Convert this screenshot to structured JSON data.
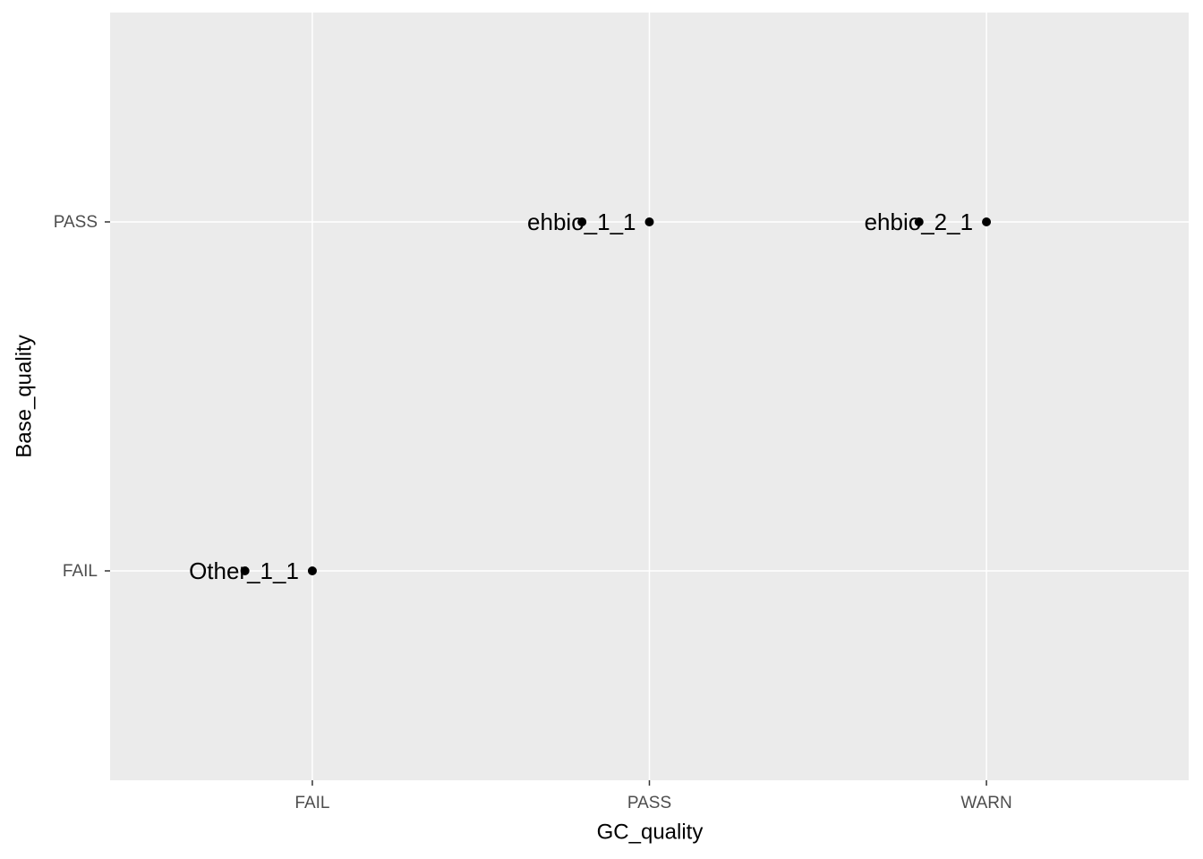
{
  "chart_data": {
    "type": "scatter",
    "x_title": "GC_quality",
    "y_title": "Base_quality",
    "x_categories": [
      "FAIL",
      "PASS",
      "WARN"
    ],
    "y_categories": [
      "FAIL",
      "PASS"
    ],
    "x": [
      "FAIL",
      "PASS",
      "WARN"
    ],
    "values": [
      "FAIL",
      "PASS",
      "PASS"
    ],
    "labels": [
      "Other_1_1",
      "ehbio_1_1",
      "ehbio_2_1"
    ],
    "color": "#000000",
    "grid": true
  }
}
